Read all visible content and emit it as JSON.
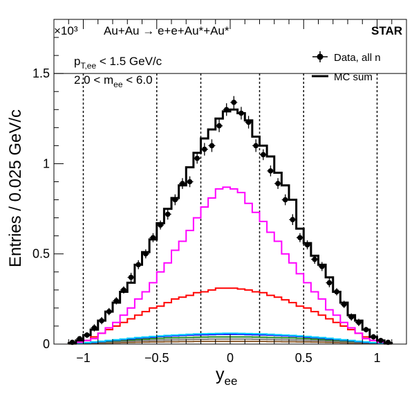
{
  "chart_data": {
    "type": "line",
    "title": "Au+Au → e+e+Au*+Au*",
    "experiment": "STAR",
    "scale_exponent": "×10³",
    "xlabel": "y_ee",
    "xlabel_main": "y",
    "xlabel_sub": "ee",
    "ylabel": "Entries / 0.025 GeV/c",
    "xlim": [
      -1.2,
      1.2
    ],
    "ylim": [
      0,
      1.8
    ],
    "x_ticks": [
      -1,
      -0.5,
      0,
      0.5,
      1
    ],
    "x_tick_labels": [
      "−1",
      "−0.5",
      "0",
      "0.5",
      "1"
    ],
    "y_ticks": [
      0,
      0.5,
      1,
      1.5
    ],
    "y_tick_labels": [
      "0",
      "0.5",
      "1",
      "1.5"
    ],
    "grid": false,
    "legend_position": "top-right",
    "legend": [
      {
        "label": "Data, all n",
        "style": "marker"
      },
      {
        "label": "MC sum",
        "style": "line"
      }
    ],
    "cuts": [
      {
        "var": "p",
        "sub": "T,ee",
        "text": " < 1.5 GeV/c"
      },
      {
        "pre": "2.0 < m",
        "sub": "ee",
        "post": " < 6.0"
      }
    ],
    "horizontal_line_y": 1.5,
    "vertical_dashed_lines": [
      -1,
      -0.5,
      -0.2,
      0.2,
      0.5,
      1
    ],
    "bin_edges": [
      -1.1,
      -1.05,
      -1.0,
      -0.95,
      -0.9,
      -0.85,
      -0.8,
      -0.75,
      -0.7,
      -0.65,
      -0.6,
      -0.55,
      -0.5,
      -0.45,
      -0.4,
      -0.35,
      -0.3,
      -0.25,
      -0.2,
      -0.15,
      -0.1,
      -0.05,
      0.0,
      0.05,
      0.1,
      0.15,
      0.2,
      0.25,
      0.3,
      0.35,
      0.4,
      0.45,
      0.5,
      0.55,
      0.6,
      0.65,
      0.7,
      0.75,
      0.8,
      0.85,
      0.9,
      0.95,
      1.0,
      1.05,
      1.1
    ],
    "data": {
      "name": "Data, all n",
      "color": "#000000",
      "x": [
        -1.075,
        -1.025,
        -0.975,
        -0.925,
        -0.875,
        -0.825,
        -0.775,
        -0.725,
        -0.675,
        -0.625,
        -0.575,
        -0.525,
        -0.475,
        -0.425,
        -0.375,
        -0.325,
        -0.275,
        -0.225,
        -0.175,
        -0.125,
        -0.075,
        -0.025,
        0.025,
        0.075,
        0.125,
        0.175,
        0.225,
        0.275,
        0.325,
        0.375,
        0.425,
        0.475,
        0.525,
        0.575,
        0.625,
        0.675,
        0.725,
        0.775,
        0.825,
        0.875,
        0.925,
        0.975,
        1.025,
        1.075
      ],
      "y": [
        0.01,
        0.03,
        0.05,
        0.09,
        0.13,
        0.18,
        0.24,
        0.3,
        0.37,
        0.44,
        0.5,
        0.59,
        0.66,
        0.72,
        0.8,
        0.89,
        0.9,
        1.03,
        1.08,
        1.1,
        1.21,
        1.3,
        1.34,
        1.28,
        1.23,
        1.1,
        1.05,
        0.96,
        0.89,
        0.8,
        0.69,
        0.59,
        0.55,
        0.47,
        0.43,
        0.34,
        0.29,
        0.22,
        0.15,
        0.12,
        0.08,
        0.04,
        0.02,
        0.01
      ],
      "yerr": [
        0.01,
        0.01,
        0.015,
        0.02,
        0.02,
        0.02,
        0.02,
        0.02,
        0.025,
        0.025,
        0.025,
        0.025,
        0.025,
        0.03,
        0.03,
        0.03,
        0.03,
        0.03,
        0.035,
        0.035,
        0.035,
        0.035,
        0.035,
        0.035,
        0.035,
        0.035,
        0.03,
        0.03,
        0.03,
        0.03,
        0.03,
        0.025,
        0.025,
        0.025,
        0.025,
        0.025,
        0.02,
        0.02,
        0.02,
        0.02,
        0.015,
        0.015,
        0.01,
        0.01
      ]
    },
    "series": [
      {
        "name": "MC sum",
        "color": "#000000",
        "width": 3,
        "values": [
          0.005,
          0.02,
          0.05,
          0.08,
          0.13,
          0.18,
          0.23,
          0.29,
          0.34,
          0.44,
          0.51,
          0.58,
          0.67,
          0.75,
          0.81,
          0.88,
          0.98,
          1.06,
          1.14,
          1.19,
          1.25,
          1.29,
          1.3,
          1.28,
          1.24,
          1.15,
          1.1,
          1.04,
          0.95,
          0.88,
          0.8,
          0.64,
          0.56,
          0.49,
          0.44,
          0.37,
          0.29,
          0.23,
          0.16,
          0.13,
          0.08,
          0.04,
          0.02,
          0.005
        ]
      },
      {
        "color": "#ff00ff",
        "width": 2,
        "values": [
          0.002,
          0.01,
          0.02,
          0.03,
          0.06,
          0.09,
          0.12,
          0.16,
          0.2,
          0.25,
          0.29,
          0.34,
          0.4,
          0.45,
          0.52,
          0.57,
          0.63,
          0.7,
          0.76,
          0.81,
          0.86,
          0.87,
          0.86,
          0.84,
          0.78,
          0.73,
          0.68,
          0.62,
          0.57,
          0.5,
          0.45,
          0.39,
          0.34,
          0.29,
          0.25,
          0.19,
          0.16,
          0.12,
          0.09,
          0.06,
          0.03,
          0.02,
          0.01,
          0.002
        ]
      },
      {
        "color": "#ff0000",
        "width": 2,
        "values": [
          0.002,
          0.01,
          0.02,
          0.04,
          0.06,
          0.08,
          0.1,
          0.12,
          0.14,
          0.16,
          0.18,
          0.2,
          0.21,
          0.23,
          0.25,
          0.26,
          0.27,
          0.285,
          0.29,
          0.3,
          0.31,
          0.31,
          0.31,
          0.305,
          0.3,
          0.29,
          0.285,
          0.27,
          0.26,
          0.245,
          0.23,
          0.21,
          0.2,
          0.18,
          0.16,
          0.14,
          0.12,
          0.1,
          0.08,
          0.06,
          0.04,
          0.02,
          0.01,
          0.002
        ]
      },
      {
        "color": "#00ccff",
        "width": 2,
        "values": [
          0.003,
          0.005,
          0.008,
          0.012,
          0.016,
          0.02,
          0.024,
          0.028,
          0.032,
          0.036,
          0.039,
          0.042,
          0.045,
          0.048,
          0.05,
          0.052,
          0.054,
          0.056,
          0.057,
          0.058,
          0.059,
          0.06,
          0.06,
          0.059,
          0.058,
          0.057,
          0.056,
          0.054,
          0.052,
          0.05,
          0.048,
          0.045,
          0.042,
          0.039,
          0.036,
          0.032,
          0.028,
          0.024,
          0.02,
          0.016,
          0.012,
          0.008,
          0.005,
          0.003
        ]
      },
      {
        "color": "#0000ff",
        "width": 2,
        "values": [
          0.002,
          0.004,
          0.007,
          0.01,
          0.014,
          0.018,
          0.022,
          0.026,
          0.029,
          0.033,
          0.036,
          0.039,
          0.042,
          0.044,
          0.046,
          0.048,
          0.05,
          0.051,
          0.052,
          0.053,
          0.054,
          0.054,
          0.054,
          0.054,
          0.053,
          0.052,
          0.051,
          0.05,
          0.048,
          0.046,
          0.044,
          0.042,
          0.039,
          0.036,
          0.033,
          0.029,
          0.026,
          0.022,
          0.018,
          0.014,
          0.01,
          0.007,
          0.004,
          0.002
        ]
      },
      {
        "color": "#228b22",
        "width": 2,
        "values": [
          0.002,
          0.004,
          0.006,
          0.009,
          0.012,
          0.015,
          0.018,
          0.021,
          0.023,
          0.026,
          0.028,
          0.03,
          0.032,
          0.034,
          0.035,
          0.036,
          0.037,
          0.038,
          0.039,
          0.04,
          0.04,
          0.04,
          0.04,
          0.04,
          0.04,
          0.039,
          0.038,
          0.037,
          0.036,
          0.035,
          0.034,
          0.032,
          0.03,
          0.028,
          0.026,
          0.023,
          0.021,
          0.018,
          0.015,
          0.012,
          0.009,
          0.006,
          0.004,
          0.002
        ]
      },
      {
        "color": "#808080",
        "width": 2,
        "values": [
          0.001,
          0.003,
          0.005,
          0.007,
          0.009,
          0.011,
          0.013,
          0.015,
          0.017,
          0.019,
          0.02,
          0.021,
          0.022,
          0.023,
          0.024,
          0.025,
          0.026,
          0.027,
          0.027,
          0.028,
          0.028,
          0.028,
          0.028,
          0.028,
          0.028,
          0.027,
          0.027,
          0.026,
          0.025,
          0.024,
          0.023,
          0.022,
          0.021,
          0.02,
          0.019,
          0.017,
          0.015,
          0.013,
          0.011,
          0.009,
          0.007,
          0.005,
          0.003,
          0.001
        ]
      },
      {
        "color": "#8b5a2b",
        "width": 2,
        "values": [
          0.001,
          0.002,
          0.003,
          0.004,
          0.005,
          0.006,
          0.007,
          0.008,
          0.009,
          0.01,
          0.011,
          0.012,
          0.012,
          0.013,
          0.013,
          0.014,
          0.014,
          0.015,
          0.015,
          0.015,
          0.015,
          0.015,
          0.015,
          0.015,
          0.015,
          0.015,
          0.015,
          0.014,
          0.014,
          0.013,
          0.013,
          0.012,
          0.012,
          0.011,
          0.01,
          0.009,
          0.008,
          0.007,
          0.006,
          0.005,
          0.004,
          0.003,
          0.002,
          0.001
        ]
      }
    ]
  }
}
